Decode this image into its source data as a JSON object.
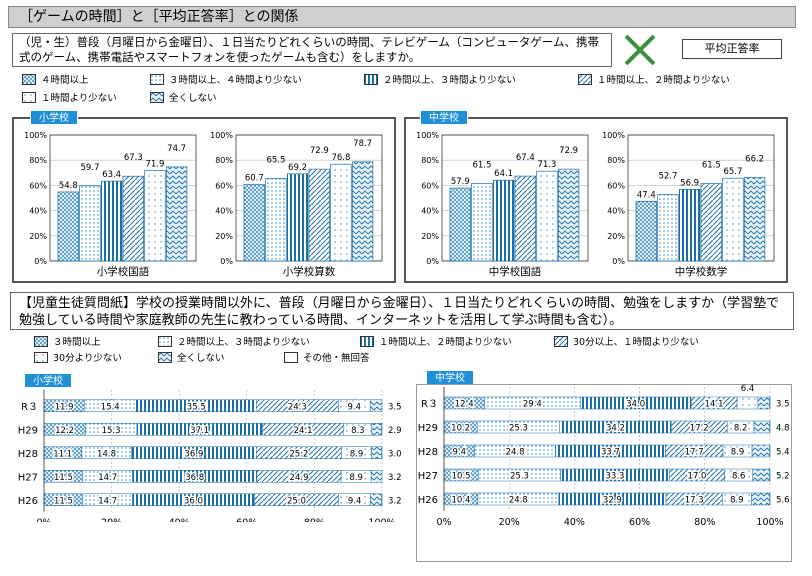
{
  "title": "［ゲームの時間］と［平均正答率］との関係",
  "question1": "（児・生）普段（月曜日から金曜日）、１日当たりどれくらいの時間、テレビゲーム（コンピュータゲーム、携帯式のゲーム、携帯電話やスマートフォンを使ったゲームも含む）をしますか。",
  "metric_label": "平均正答率",
  "legend1": [
    "４時間以上",
    "３時間以上、４時間より少ない",
    "２時間以上、３時間より少ない",
    "１時間以上、２時間より少ない",
    "１時間より少ない",
    "全くしない"
  ],
  "patterns": [
    "dots",
    "dots-light",
    "vlines",
    "diag",
    "dots-sparse",
    "zigzag",
    "blank"
  ],
  "panel_tags": {
    "elementary": "小学校",
    "junior": "中学校"
  },
  "question2": "【児童生徒質問紙】学校の授業時間以外に、普段（月曜日から金曜日）、１日当たりどれくらいの時間、勉強をしますか（学習塾で勉強している時間や家庭教師の先生に教わっている時間、インターネットを活用して学ぶ時間も含む）。",
  "legend2": [
    "３時間以上",
    "２時間以上、３時間より少ない",
    "１時間以上、２時間より少ない",
    "30分以上、１時間より少ない",
    "30分より少ない",
    "全くしない",
    "その他・無回答"
  ],
  "colors": {
    "bar_fill": "#bfe0f2",
    "bar_stroke": "#1b6fa8",
    "tag": "#1f8fd8",
    "accent": "#2e7d32"
  },
  "chart_data": [
    {
      "type": "bar",
      "title": "",
      "xlabel": "小学校国語",
      "ylim": [
        0,
        100
      ],
      "yticks": [
        "0%",
        "20%",
        "40%",
        "60%",
        "80%",
        "100%"
      ],
      "values": [
        54.8,
        59.7,
        63.4,
        67.3,
        71.9,
        74.7
      ],
      "labels": [
        "54.8",
        "59.7",
        "63.4",
        "67.3",
        "71.9",
        "74.7"
      ]
    },
    {
      "type": "bar",
      "title": "",
      "xlabel": "小学校算数",
      "ylim": [
        0,
        100
      ],
      "yticks": [
        "0%",
        "20%",
        "40%",
        "60%",
        "80%",
        "100%"
      ],
      "values": [
        60.7,
        65.5,
        69.2,
        72.9,
        76.8,
        78.7
      ],
      "labels": [
        "60.7",
        "65.5",
        "69.2",
        "72.9",
        "76.8",
        "78.7"
      ]
    },
    {
      "type": "bar",
      "title": "",
      "xlabel": "中学校国語",
      "ylim": [
        0,
        100
      ],
      "yticks": [
        "0%",
        "20%",
        "40%",
        "60%",
        "80%",
        "100%"
      ],
      "values": [
        57.9,
        61.5,
        64.1,
        67.4,
        71.3,
        72.9
      ],
      "labels": [
        "57.9",
        "61.5",
        "64.1",
        "67.4",
        "71.3",
        "72.9"
      ]
    },
    {
      "type": "bar",
      "title": "",
      "xlabel": "中学校数学",
      "ylim": [
        0,
        100
      ],
      "yticks": [
        "0%",
        "20%",
        "40%",
        "60%",
        "80%",
        "100%"
      ],
      "values": [
        47.4,
        52.7,
        56.9,
        61.5,
        65.7,
        66.2
      ],
      "labels": [
        "47.4",
        "52.7",
        "56.9",
        "61.5",
        "65.7",
        "66.2"
      ]
    },
    {
      "type": "stacked-bar-horizontal",
      "title": "",
      "categories": [
        "R３",
        "H29",
        "H28",
        "H27",
        "H26"
      ],
      "xticks": [
        "0%",
        "20%",
        "40%",
        "60%",
        "80%",
        "100%"
      ],
      "rows": [
        [
          11.9,
          15.4,
          35.5,
          24.3,
          9.4,
          3.5,
          0.0
        ],
        [
          12.2,
          15.3,
          37.1,
          24.1,
          8.3,
          2.9,
          0.1
        ],
        [
          11.1,
          14.8,
          36.9,
          25.2,
          8.9,
          3.0,
          0.1
        ],
        [
          11.5,
          14.7,
          36.8,
          24.9,
          8.9,
          3.2,
          0.0
        ],
        [
          11.5,
          14.7,
          36.0,
          25.0,
          9.4,
          3.2,
          0.2
        ]
      ],
      "labels": [
        [
          "11.9",
          "15.4",
          "35.5",
          "24.3",
          "9.4",
          "3.5"
        ],
        [
          "12.2",
          "15.3",
          "37.1",
          "24.1",
          "8.3",
          "2.9"
        ],
        [
          "11.1",
          "14.8",
          "36.9",
          "25.2",
          "8.9",
          "3.0"
        ],
        [
          "11.5",
          "14.7",
          "36.8",
          "24.9",
          "8.9",
          "3.2"
        ],
        [
          "11.5",
          "14.7",
          "36.0",
          "25.0",
          "9.4",
          "3.2"
        ]
      ]
    },
    {
      "type": "stacked-bar-horizontal",
      "title": "",
      "categories": [
        "R３",
        "H29",
        "H28",
        "H27",
        "H26"
      ],
      "xticks": [
        "0%",
        "20%",
        "40%",
        "60%",
        "80%",
        "100%"
      ],
      "rows": [
        [
          12.4,
          29.4,
          34.0,
          14.1,
          6.4,
          3.5,
          0.2
        ],
        [
          10.2,
          25.3,
          34.2,
          17.2,
          8.2,
          4.8,
          0.1
        ],
        [
          9.4,
          24.8,
          33.7,
          17.7,
          8.9,
          5.4,
          0.1
        ],
        [
          10.5,
          25.3,
          33.3,
          17.0,
          8.6,
          5.2,
          0.1
        ],
        [
          10.4,
          24.8,
          32.9,
          17.3,
          8.9,
          5.6,
          0.1
        ]
      ],
      "labels": [
        [
          "12.4",
          "29.4",
          "34.0",
          "14.1",
          "6.4",
          "3.5"
        ],
        [
          "10.2",
          "25.3",
          "34.2",
          "17.2",
          "8.2",
          "4.8"
        ],
        [
          "9.4",
          "24.8",
          "33.7",
          "17.7",
          "8.9",
          "5.4"
        ],
        [
          "10.5",
          "25.3",
          "33.3",
          "17.0",
          "8.6",
          "5.2"
        ],
        [
          "10.4",
          "24.8",
          "32.9",
          "17.3",
          "8.9",
          "5.6"
        ]
      ]
    }
  ]
}
